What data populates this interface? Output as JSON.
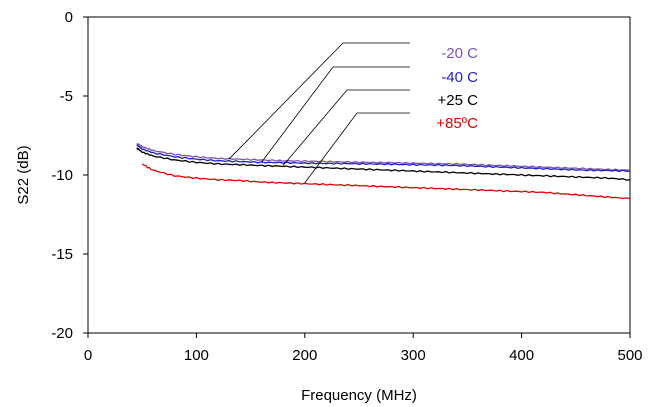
{
  "chart_data": {
    "type": "line",
    "title": "",
    "xlabel": "Frequency (MHz)",
    "ylabel": "S22 (dB)",
    "xlim": [
      0,
      500
    ],
    "ylim": [
      -20,
      0
    ],
    "x_ticks": [
      0,
      100,
      200,
      300,
      400,
      500
    ],
    "x_tick_labels": [
      "0",
      "100",
      "200",
      "300",
      "400",
      "500"
    ],
    "y_ticks": [
      0,
      -5,
      -10,
      -15,
      -20
    ],
    "y_tick_labels": [
      "0",
      "-5",
      "-10",
      "-15",
      "-20"
    ],
    "grid": false,
    "legend_placement": "top-right, callout lines to curves",
    "series": [
      {
        "name": "-20 C",
        "color": "#7b56b0",
        "x": [
          45,
          50,
          60,
          80,
          100,
          120,
          140,
          160,
          180,
          200,
          220,
          240,
          260,
          280,
          300,
          320,
          340,
          360,
          380,
          400,
          420,
          440,
          460,
          480,
          500
        ],
        "y": [
          -8.0,
          -8.2,
          -8.45,
          -8.7,
          -8.85,
          -8.95,
          -9.0,
          -9.05,
          -9.1,
          -9.12,
          -9.15,
          -9.18,
          -9.2,
          -9.22,
          -9.25,
          -9.28,
          -9.3,
          -9.35,
          -9.4,
          -9.45,
          -9.5,
          -9.55,
          -9.6,
          -9.65,
          -9.7
        ],
        "label_point": [
          130,
          -9.0
        ]
      },
      {
        "name": "-40 C",
        "color": "#2020c8",
        "x": [
          45,
          50,
          60,
          80,
          100,
          120,
          140,
          160,
          180,
          200,
          220,
          240,
          260,
          280,
          300,
          320,
          340,
          360,
          380,
          400,
          420,
          440,
          460,
          480,
          500
        ],
        "y": [
          -8.1,
          -8.35,
          -8.6,
          -8.85,
          -9.0,
          -9.1,
          -9.15,
          -9.2,
          -9.22,
          -9.25,
          -9.27,
          -9.28,
          -9.3,
          -9.32,
          -9.35,
          -9.37,
          -9.4,
          -9.45,
          -9.5,
          -9.55,
          -9.6,
          -9.65,
          -9.7,
          -9.72,
          -9.75
        ],
        "label_point": [
          160,
          -9.2
        ]
      },
      {
        "name": "+25 C",
        "color": "#000000",
        "x": [
          45,
          50,
          60,
          80,
          100,
          120,
          140,
          160,
          180,
          200,
          220,
          240,
          260,
          280,
          300,
          320,
          340,
          360,
          380,
          400,
          420,
          440,
          460,
          480,
          500
        ],
        "y": [
          -8.3,
          -8.55,
          -8.8,
          -9.05,
          -9.2,
          -9.3,
          -9.35,
          -9.4,
          -9.45,
          -9.5,
          -9.55,
          -9.6,
          -9.65,
          -9.7,
          -9.75,
          -9.8,
          -9.85,
          -9.9,
          -9.95,
          -10.0,
          -10.05,
          -10.1,
          -10.15,
          -10.2,
          -10.3
        ],
        "label_point": [
          180,
          -9.4
        ]
      },
      {
        "name": "+85ºC",
        "color": "#e00000",
        "x": [
          50,
          60,
          80,
          100,
          120,
          140,
          160,
          180,
          200,
          220,
          240,
          260,
          280,
          300,
          320,
          340,
          360,
          380,
          400,
          420,
          440,
          460,
          480,
          500
        ],
        "y": [
          -9.3,
          -9.7,
          -10.05,
          -10.2,
          -10.3,
          -10.35,
          -10.45,
          -10.5,
          -10.55,
          -10.6,
          -10.65,
          -10.7,
          -10.75,
          -10.8,
          -10.85,
          -10.9,
          -10.95,
          -11.0,
          -11.05,
          -11.1,
          -11.2,
          -11.3,
          -11.4,
          -11.5
        ],
        "label_point": [
          200,
          -10.5
        ]
      }
    ]
  }
}
